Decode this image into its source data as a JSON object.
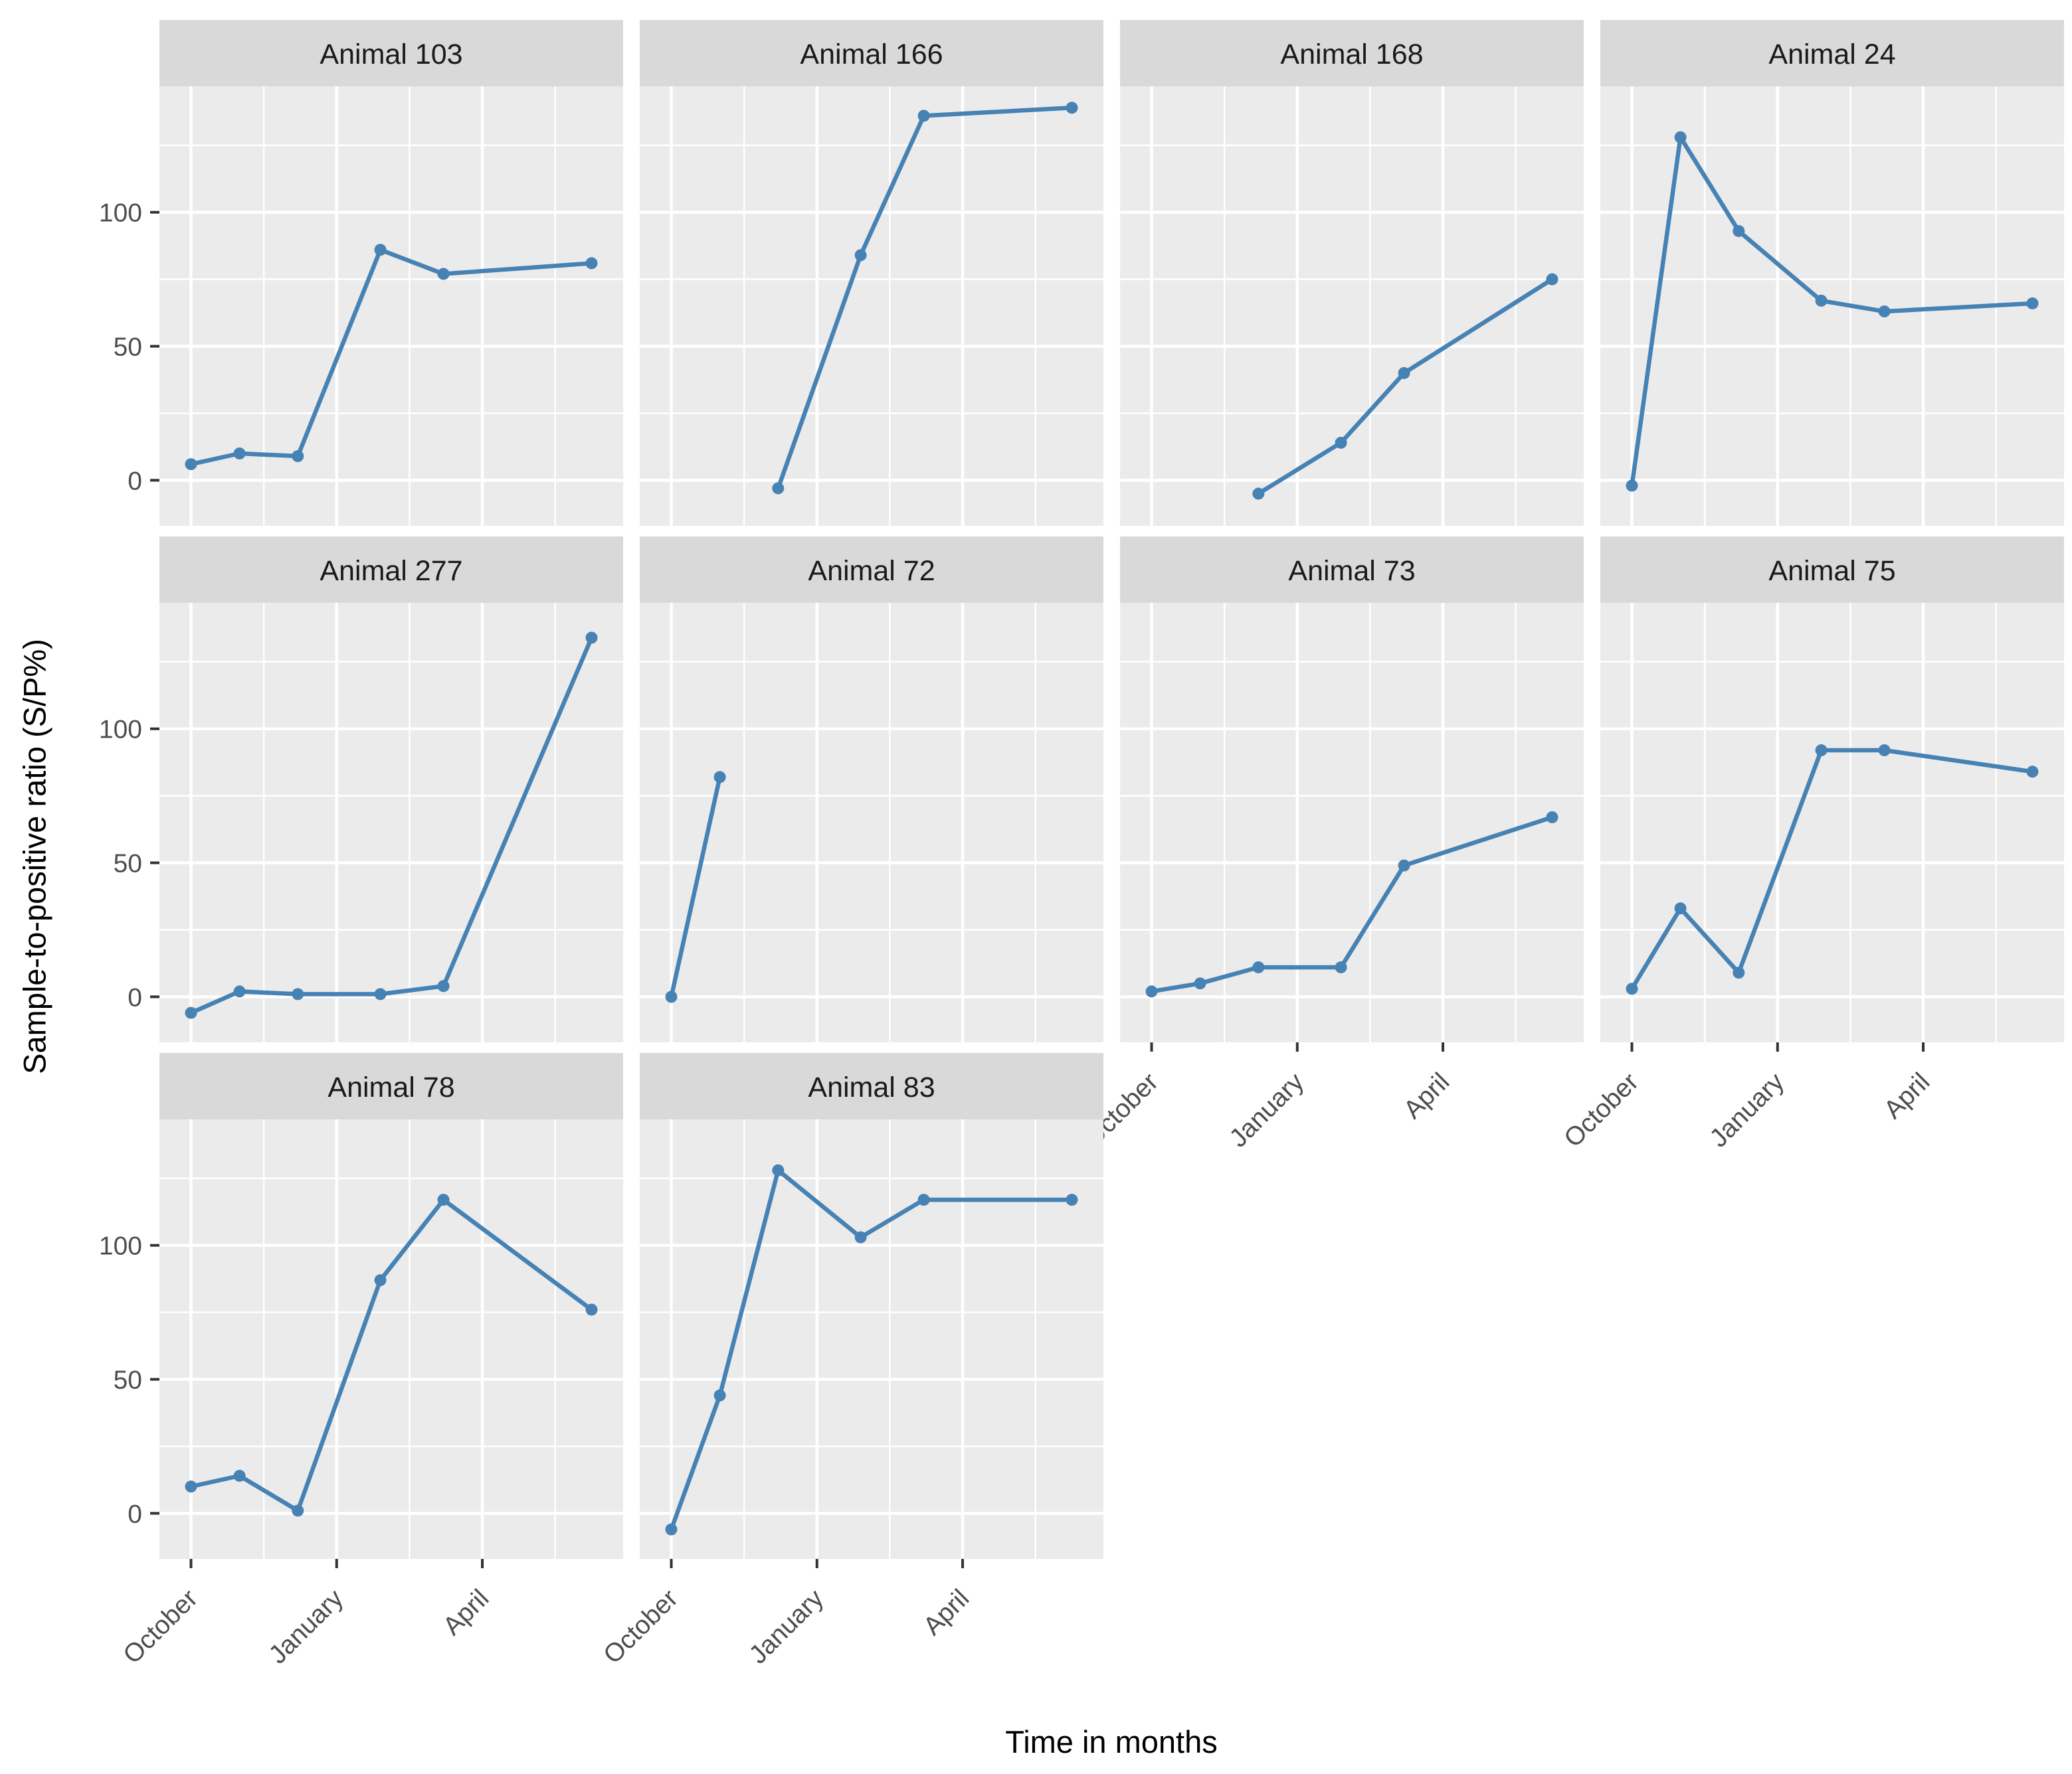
{
  "figure": {
    "y_axis_title": "Sample-to-positive ratio (S/P%)",
    "x_axis_title": "Time in months"
  },
  "chart_data": {
    "type": "line",
    "title": "",
    "facet_variable": "Animal",
    "xlabel": "Time in months",
    "ylabel": "Sample-to-positive ratio (S/P%)",
    "x_unit": "months since October",
    "xlim": [
      -0.65,
      8.9
    ],
    "ylim": [
      -17,
      147
    ],
    "grid": true,
    "legend_position": "none",
    "x_major_ticks": [
      {
        "value": 0,
        "label": "October"
      },
      {
        "value": 3,
        "label": "January"
      },
      {
        "value": 6,
        "label": "April"
      }
    ],
    "x_minor_gridlines": [
      1.5,
      4.5,
      7.5
    ],
    "y_major_ticks": [
      {
        "value": 0,
        "label": "0"
      },
      {
        "value": 50,
        "label": "50"
      },
      {
        "value": 100,
        "label": "100"
      }
    ],
    "y_minor_gridlines": [
      25,
      75,
      125
    ],
    "facets": [
      {
        "label": "Animal 103",
        "x": [
          0,
          1,
          2.2,
          3.9,
          5.2,
          8.25
        ],
        "y": [
          6,
          10,
          9,
          86,
          77,
          81
        ]
      },
      {
        "label": "Animal 166",
        "x": [
          2.2,
          3.9,
          5.2,
          8.25
        ],
        "y": [
          -3,
          84,
          136,
          139
        ]
      },
      {
        "label": "Animal 168",
        "x": [
          2.2,
          3.9,
          5.2,
          8.25
        ],
        "y": [
          -5,
          14,
          40,
          75
        ]
      },
      {
        "label": "Animal 24",
        "x": [
          0,
          1,
          2.2,
          3.9,
          5.2,
          8.25
        ],
        "y": [
          -2,
          128,
          93,
          67,
          63,
          66
        ]
      },
      {
        "label": "Animal 277",
        "x": [
          0,
          1,
          2.2,
          3.9,
          5.2,
          8.25
        ],
        "y": [
          -6,
          2,
          1,
          1,
          4,
          134
        ]
      },
      {
        "label": "Animal 72",
        "x": [
          0,
          1
        ],
        "y": [
          0,
          82
        ]
      },
      {
        "label": "Animal 73",
        "x": [
          0,
          1,
          2.2,
          3.9,
          5.2,
          8.25
        ],
        "y": [
          2,
          5,
          11,
          11,
          49,
          67
        ]
      },
      {
        "label": "Animal 75",
        "x": [
          0,
          1,
          2.2,
          3.9,
          5.2,
          8.25
        ],
        "y": [
          3,
          33,
          9,
          92,
          92,
          84
        ]
      },
      {
        "label": "Animal 78",
        "x": [
          0,
          1,
          2.2,
          3.9,
          5.2,
          8.25
        ],
        "y": [
          10,
          14,
          1,
          87,
          117,
          76
        ]
      },
      {
        "label": "Animal 83",
        "x": [
          0,
          1,
          2.2,
          3.9,
          5.2,
          8.25
        ],
        "y": [
          -6,
          44,
          128,
          103,
          117,
          117
        ]
      }
    ],
    "colors": {
      "line": "#4682B4",
      "panel_background": "#EBEBEB",
      "strip_background": "#D9D9D9",
      "gridline": "#FFFFFF",
      "axis_text": "#4D4D4D",
      "axis_title": "#000000",
      "strip_text": "#1A1A1A",
      "tick_mark": "#333333"
    }
  }
}
